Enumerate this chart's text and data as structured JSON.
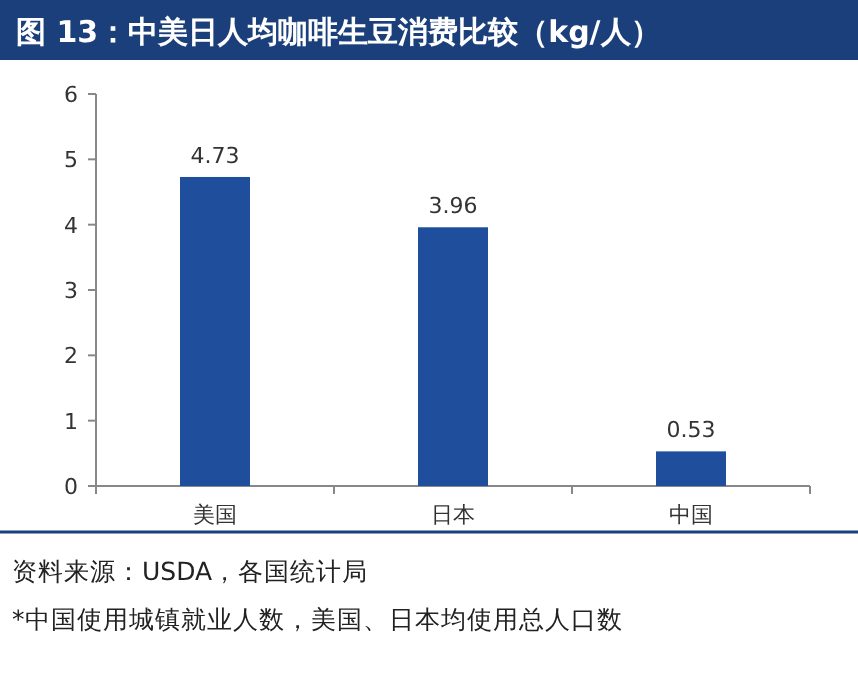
{
  "chart_data": {
    "type": "bar",
    "title": "图 13：中美日人均咖啡生豆消费比较（kg/人）",
    "categories": [
      "美国",
      "日本",
      "中国"
    ],
    "values": [
      4.73,
      3.96,
      0.53
    ],
    "color": "#1f4e9c",
    "ylim": [
      0,
      6
    ],
    "yticks": [
      0,
      1,
      2,
      3,
      4,
      5,
      6
    ],
    "data_labels": true,
    "annotations": [
      "资料来源：USDA，各国统计局",
      "*中国使用城镇就业人数，美国、日本均使用总人口数"
    ]
  }
}
